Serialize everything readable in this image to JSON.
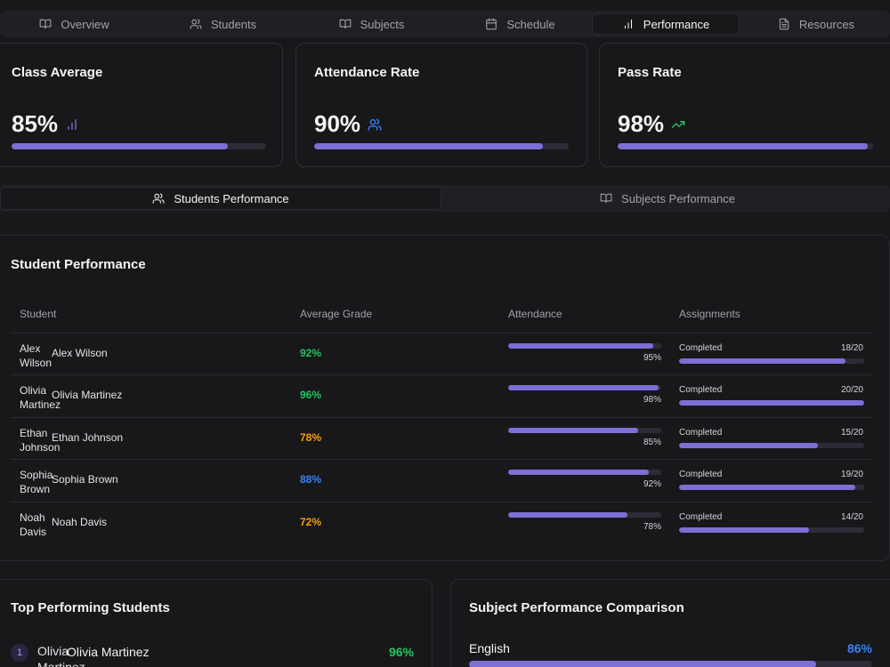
{
  "colors": {
    "accent": "#7c6fd6",
    "green": "#22c55e",
    "orange": "#f59e0b",
    "blue": "#3b82f6",
    "background": "#18181b"
  },
  "nav": {
    "tabs": [
      {
        "label": "Overview",
        "icon": "book-open-icon"
      },
      {
        "label": "Students",
        "icon": "users-icon"
      },
      {
        "label": "Subjects",
        "icon": "book-open-icon"
      },
      {
        "label": "Schedule",
        "icon": "calendar-icon"
      },
      {
        "label": "Performance",
        "icon": "bar-chart-icon",
        "active": true
      },
      {
        "label": "Resources",
        "icon": "file-text-icon"
      }
    ]
  },
  "stats": [
    {
      "title": "Class Average",
      "value": "85%",
      "progress": 0.85,
      "icon": "bar-chart-icon"
    },
    {
      "title": "Attendance Rate",
      "value": "90%",
      "progress": 0.9,
      "icon": "users-icon"
    },
    {
      "title": "Pass Rate",
      "value": "98%",
      "progress": 0.98,
      "icon": "trending-up-icon"
    }
  ],
  "subtabs": [
    {
      "label": "Students Performance",
      "icon": "users-icon",
      "active": true
    },
    {
      "label": "Subjects Performance",
      "icon": "book-open-icon"
    }
  ],
  "performance": {
    "title": "Student Performance",
    "headers": [
      "Student",
      "Average Grade",
      "Attendance",
      "Assignments"
    ],
    "rows": [
      {
        "short": "Alex Wilson",
        "name": "Alex Wilson",
        "grade": "92%",
        "grade_color": "green",
        "attendance": "95%",
        "attendance_value": 0.95,
        "assign_label": "Completed",
        "assign_count": "18/20",
        "assign_value": 0.9
      },
      {
        "short": "Olivia Martinez",
        "name": "Olivia Martinez",
        "grade": "96%",
        "grade_color": "green",
        "attendance": "98%",
        "attendance_value": 0.98,
        "assign_label": "Completed",
        "assign_count": "20/20",
        "assign_value": 1.0
      },
      {
        "short": "Ethan Johnson",
        "name": "Ethan Johnson",
        "grade": "78%",
        "grade_color": "orange",
        "attendance": "85%",
        "attendance_value": 0.85,
        "assign_label": "Completed",
        "assign_count": "15/20",
        "assign_value": 0.75
      },
      {
        "short": "Sophia Brown",
        "name": "Sophia Brown",
        "grade": "88%",
        "grade_color": "blue",
        "attendance": "92%",
        "attendance_value": 0.92,
        "assign_label": "Completed",
        "assign_count": "19/20",
        "assign_value": 0.95
      },
      {
        "short": "Noah Davis",
        "name": "Noah Davis",
        "grade": "72%",
        "grade_color": "orange",
        "attendance": "78%",
        "attendance_value": 0.78,
        "assign_label": "Completed",
        "assign_count": "14/20",
        "assign_value": 0.7
      }
    ]
  },
  "top_students": {
    "title": "Top Performing Students",
    "items": [
      {
        "rank": "1",
        "short": "Olivia Martinez",
        "name": "Olivia Martinez",
        "grade": "96%"
      }
    ]
  },
  "subject_comparison": {
    "title": "Subject Performance Comparison",
    "items": [
      {
        "name": "English",
        "value": "86%",
        "progress": 0.86
      }
    ]
  }
}
